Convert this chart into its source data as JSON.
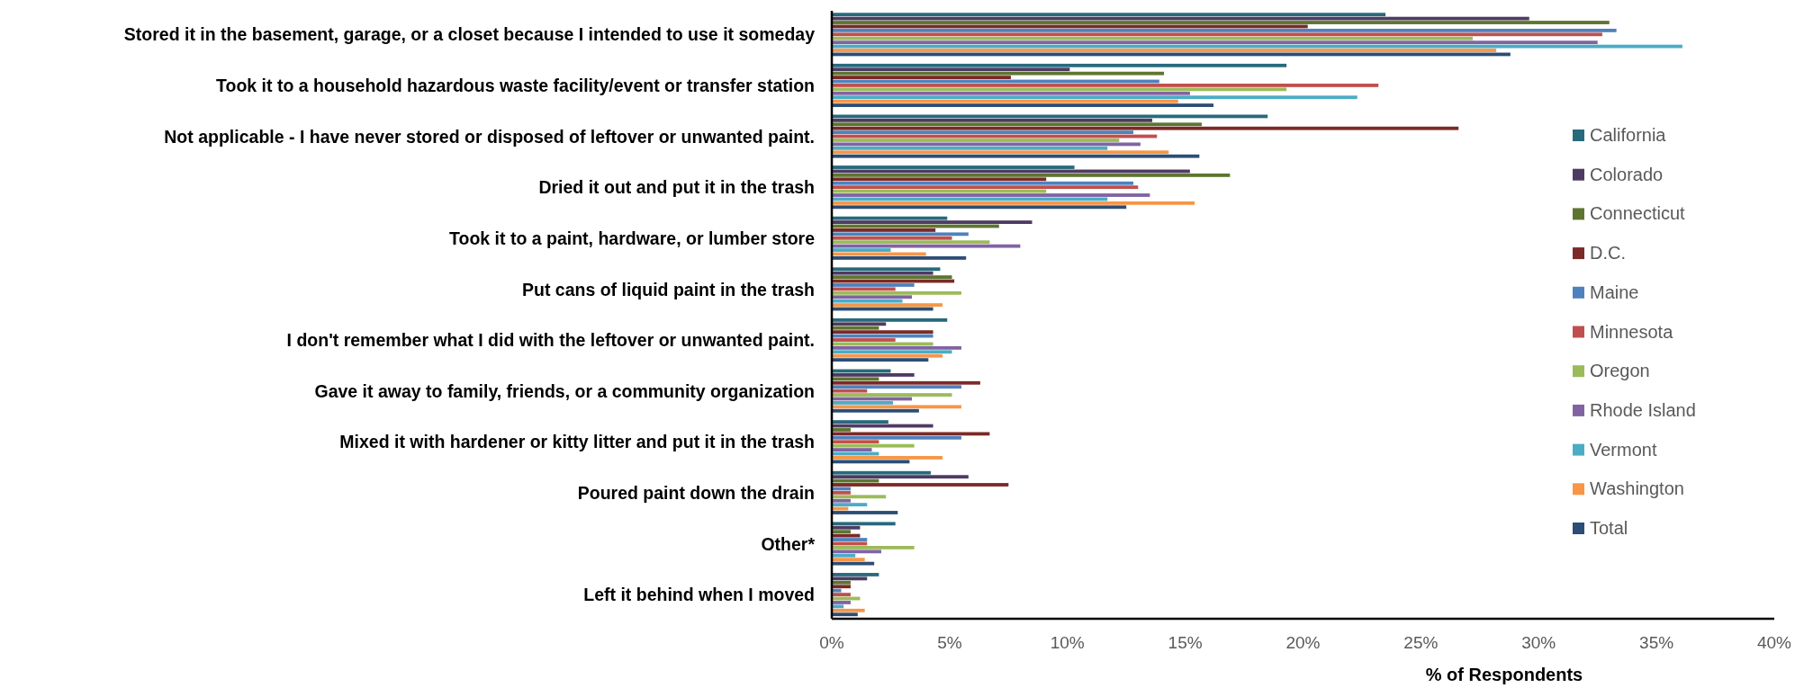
{
  "chart_data": {
    "type": "bar",
    "orientation": "horizontal",
    "xlabel": "% of Respondents",
    "categories": [
      "Stored it in the basement, garage, or a closet because I intended to use it someday",
      "Took it to a household hazardous waste facility/event or transfer station",
      "Not applicable - I have never stored or disposed of leftover or unwanted paint.",
      "Dried it out and put it in the trash",
      "Took it to a paint, hardware, or lumber store",
      "Put cans of liquid paint in the trash",
      "I don't remember what I did with the leftover or unwanted paint.",
      "Gave it away to family, friends, or a community organization",
      "Mixed it with hardener or kitty litter and put it in the trash",
      "Poured paint down the drain",
      "Other*",
      "Left it behind when I moved"
    ],
    "series": [
      {
        "name": "California",
        "color": "#276a7c",
        "values": [
          23.5,
          19.3,
          18.5,
          10.3,
          4.9,
          4.6,
          4.9,
          2.5,
          2.4,
          4.2,
          2.7,
          2.0
        ]
      },
      {
        "name": "Colorado",
        "color": "#4e3b62",
        "values": [
          29.6,
          10.1,
          13.6,
          15.2,
          8.5,
          4.3,
          2.3,
          3.5,
          4.3,
          5.8,
          1.2,
          1.5
        ]
      },
      {
        "name": "Connecticut",
        "color": "#5e7530",
        "values": [
          33.0,
          14.1,
          15.7,
          16.9,
          7.1,
          5.1,
          2.0,
          2.0,
          0.8,
          2.0,
          0.8,
          0.8
        ]
      },
      {
        "name": "D.C.",
        "color": "#7b2a27",
        "values": [
          20.2,
          7.6,
          26.6,
          9.1,
          4.4,
          5.2,
          4.3,
          6.3,
          6.7,
          7.5,
          1.2,
          0.8
        ]
      },
      {
        "name": "Maine",
        "color": "#4f81bd",
        "values": [
          33.3,
          13.9,
          12.8,
          12.8,
          5.8,
          3.5,
          4.3,
          5.5,
          5.5,
          0.8,
          1.5,
          0.4
        ]
      },
      {
        "name": "Minnesota",
        "color": "#c0504d",
        "values": [
          32.7,
          23.2,
          13.8,
          13.0,
          5.1,
          2.7,
          2.7,
          1.5,
          2.0,
          0.8,
          1.5,
          0.8
        ]
      },
      {
        "name": "Oregon",
        "color": "#9bbb59",
        "values": [
          27.2,
          19.3,
          12.2,
          9.1,
          6.7,
          5.5,
          4.3,
          5.1,
          3.5,
          2.3,
          3.5,
          1.2
        ]
      },
      {
        "name": "Rhode Island",
        "color": "#8064a2",
        "values": [
          32.5,
          15.2,
          13.1,
          13.5,
          8.0,
          3.4,
          5.5,
          3.4,
          1.7,
          0.8,
          2.1,
          0.8
        ]
      },
      {
        "name": "Vermont",
        "color": "#4bacc6",
        "values": [
          36.1,
          22.3,
          11.7,
          11.7,
          2.5,
          3.0,
          5.1,
          2.6,
          2.0,
          1.5,
          1.0,
          0.5
        ]
      },
      {
        "name": "Washington",
        "color": "#f79646",
        "values": [
          28.2,
          14.7,
          14.3,
          15.4,
          4.0,
          4.7,
          4.7,
          5.5,
          4.7,
          0.7,
          1.4,
          1.4
        ]
      },
      {
        "name": "Total",
        "color": "#2c4d75",
        "values": [
          28.8,
          16.2,
          15.6,
          12.5,
          5.7,
          4.3,
          4.1,
          3.7,
          3.3,
          2.8,
          1.8,
          1.1
        ]
      }
    ],
    "xlim": [
      0,
      40
    ],
    "xticks": [
      {
        "value": 0,
        "label": "0%"
      },
      {
        "value": 5,
        "label": "5%"
      },
      {
        "value": 10,
        "label": "10%"
      },
      {
        "value": 15,
        "label": "15%"
      },
      {
        "value": 20,
        "label": "20%"
      },
      {
        "value": 25,
        "label": "25%"
      },
      {
        "value": 30,
        "label": "30%"
      },
      {
        "value": 35,
        "label": "35%"
      },
      {
        "value": 40,
        "label": "40%"
      }
    ],
    "legend": "right",
    "grid": false
  }
}
